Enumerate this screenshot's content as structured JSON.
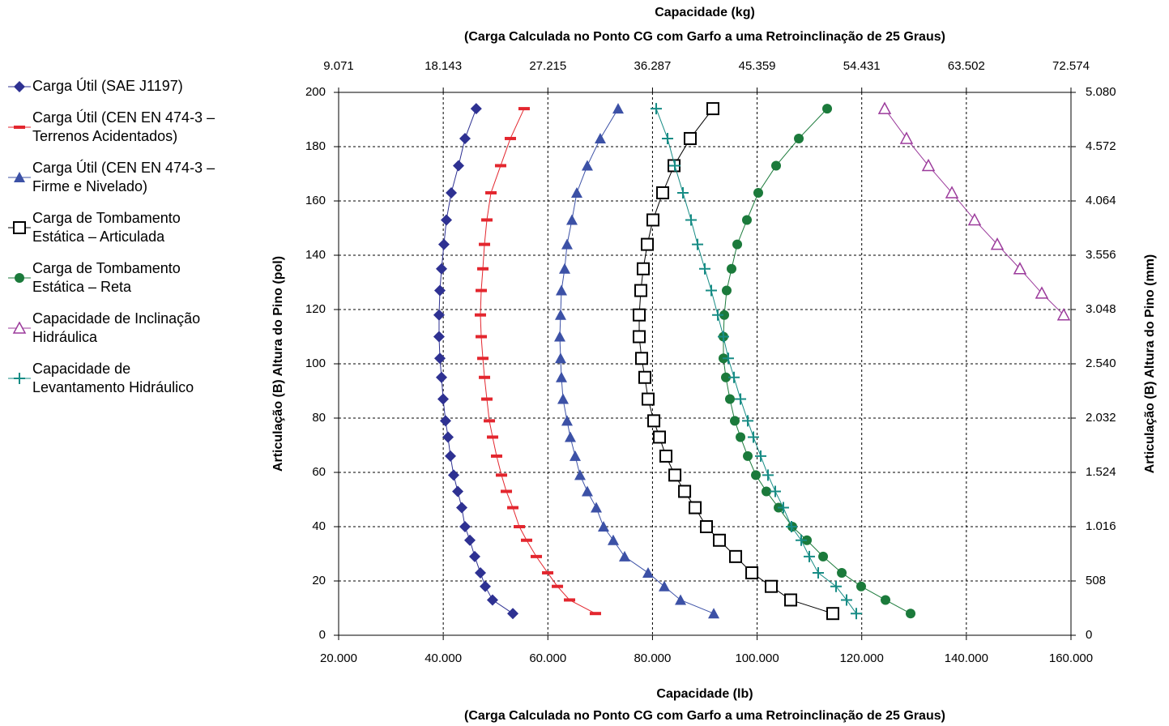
{
  "chart_data": {
    "type": "line",
    "xlabel": "Capacidade (lb)",
    "xlabel_note": "(Carga Calculada no Ponto CG com Garfo a uma Retroinclinação de 25 Graus)",
    "x2label": "Capacidade (kg)",
    "x2label_note": "(Carga Calculada no Ponto CG com Garfo a uma Retroinclinação de 25 Graus)",
    "ylabel": "Articulação (B) Altura do Pino (pol)",
    "y2label": "Articulação (B) Altura do Pino (mm)",
    "xlim": [
      20000,
      160000
    ],
    "xticks": [
      {
        "value": 20000,
        "label": "20.000"
      },
      {
        "value": 40000,
        "label": "40.000"
      },
      {
        "value": 60000,
        "label": "60.000"
      },
      {
        "value": 80000,
        "label": "80.000"
      },
      {
        "value": 100000,
        "label": "100.000"
      },
      {
        "value": 120000,
        "label": "120.000"
      },
      {
        "value": 140000,
        "label": "140.000"
      },
      {
        "value": 160000,
        "label": "160.000"
      }
    ],
    "x2lim": [
      9071,
      72574
    ],
    "x2ticks": [
      {
        "value": 9071,
        "label": "9.071"
      },
      {
        "value": 18143,
        "label": "18.143"
      },
      {
        "value": 27215,
        "label": "27.215"
      },
      {
        "value": 36287,
        "label": "36.287"
      },
      {
        "value": 45359,
        "label": "45.359"
      },
      {
        "value": 54431,
        "label": "54.431"
      },
      {
        "value": 63502,
        "label": "63.502"
      },
      {
        "value": 72574,
        "label": "72.574"
      }
    ],
    "ylim": [
      0,
      200
    ],
    "yticks": [
      0,
      20,
      40,
      60,
      80,
      100,
      120,
      140,
      160,
      180,
      200
    ],
    "y2lim": [
      0,
      5080
    ],
    "y2ticks": [
      0,
      508,
      {
        "value": 1016,
        "label": "1.016"
      },
      {
        "value": 1524,
        "label": "1.524"
      },
      {
        "value": 2032,
        "label": "2.032"
      },
      {
        "value": 2540,
        "label": "2.540"
      },
      {
        "value": 3048,
        "label": "3.048"
      },
      {
        "value": 3556,
        "label": "3.556"
      },
      {
        "value": 4064,
        "label": "4.064"
      },
      {
        "value": 4572,
        "label": "4.572"
      },
      {
        "value": 5080,
        "label": "5.080"
      }
    ],
    "grid": true,
    "legend": "left",
    "series": [
      {
        "name": "Carga Útil (SAE J1197)",
        "color": "#2e3192",
        "marker": "diamond",
        "x": [
          46300,
          44160,
          42920,
          41530,
          40600,
          40130,
          39670,
          39360,
          39200,
          39200,
          39360,
          39670,
          39980,
          40440,
          40910,
          41370,
          41990,
          42770,
          43540,
          44160,
          45090,
          46020,
          47100,
          48030,
          49420,
          53300
        ],
        "values": [
          194,
          183,
          173,
          163,
          153,
          144,
          135,
          127,
          118,
          110,
          102,
          95,
          87,
          79,
          73,
          66,
          59,
          53,
          47,
          40,
          35,
          29,
          23,
          18,
          13,
          8
        ]
      },
      {
        "name": "Carga Útil (CEN EN 474-3 – Terrenos Acidentados)",
        "color": "#e3262e",
        "marker": "dash",
        "x": [
          55460,
          52830,
          50970,
          49120,
          48340,
          47880,
          47570,
          47260,
          47100,
          47260,
          47570,
          47880,
          48340,
          48810,
          49430,
          50200,
          51130,
          52060,
          53300,
          54540,
          55930,
          57790,
          59960,
          61820,
          64140,
          69090
        ],
        "values": [
          194,
          183,
          173,
          163,
          153,
          144,
          135,
          127,
          118,
          110,
          102,
          95,
          87,
          79,
          73,
          66,
          59,
          53,
          47,
          40,
          35,
          29,
          23,
          18,
          13,
          8
        ]
      },
      {
        "name": "Carga Útil (CEN EN 474-3 – Firme e Nivelado)",
        "color": "#3c51a6",
        "marker": "triangle",
        "x": [
          73430,
          70020,
          67540,
          65530,
          64600,
          63670,
          63210,
          62590,
          62430,
          62280,
          62430,
          62590,
          62900,
          63670,
          64290,
          65220,
          66150,
          67540,
          69250,
          70640,
          72500,
          74670,
          79160,
          82260,
          85360,
          91710
        ],
        "values": [
          194,
          183,
          173,
          163,
          153,
          144,
          135,
          127,
          118,
          110,
          102,
          95,
          87,
          79,
          73,
          66,
          59,
          53,
          47,
          40,
          35,
          29,
          23,
          18,
          13,
          8
        ]
      },
      {
        "name": "Carga de Tombamento Estática – Articulada",
        "color": "#000000",
        "marker": "square",
        "x": [
          91550,
          87210,
          84120,
          81950,
          80090,
          79010,
          78230,
          77770,
          77460,
          77460,
          77920,
          78540,
          79160,
          80250,
          81330,
          82570,
          84280,
          86140,
          88150,
          90310,
          92790,
          95890,
          98990,
          102700,
          106420,
          114470
        ],
        "values": [
          194,
          183,
          173,
          163,
          153,
          144,
          135,
          127,
          118,
          110,
          102,
          95,
          87,
          79,
          73,
          66,
          59,
          53,
          47,
          40,
          35,
          29,
          23,
          18,
          13,
          8
        ]
      },
      {
        "name": "Carga de Tombamento Estática – Reta",
        "color": "#1b7a3b",
        "marker": "circle",
        "x": [
          113390,
          107970,
          103630,
          100220,
          98050,
          96200,
          95110,
          94180,
          93720,
          93560,
          93560,
          94030,
          94800,
          95730,
          96820,
          98210,
          99760,
          101770,
          104100,
          106730,
          109520,
          112620,
          116180,
          119890,
          124540,
          129340
        ],
        "values": [
          194,
          183,
          173,
          163,
          153,
          144,
          135,
          127,
          118,
          110,
          102,
          95,
          87,
          79,
          73,
          66,
          59,
          53,
          47,
          40,
          35,
          29,
          23,
          18,
          13,
          8
        ]
      },
      {
        "name": "Capacidade de Inclinação Hidráulica",
        "color": "#9b3a9b",
        "marker": "open-triangle",
        "x": [
          124380,
          128560,
          132750,
          137240,
          141570,
          145910,
          150240,
          154420,
          158610
        ],
        "values": [
          194,
          183,
          173,
          163,
          153,
          144,
          135,
          126,
          118
        ]
      },
      {
        "name": "Capacidade de Levantamento Hidráulico",
        "color": "#178c85",
        "marker": "plus",
        "x": [
          80710,
          82880,
          84270,
          85820,
          87370,
          88610,
          90000,
          91240,
          92480,
          93560,
          94490,
          95580,
          96820,
          98210,
          99290,
          100690,
          102080,
          103470,
          105020,
          106570,
          108430,
          109980,
          111680,
          115090,
          117100,
          118960
        ],
        "values": [
          194,
          183,
          173,
          163,
          153,
          144,
          135,
          127,
          118,
          110,
          102,
          95,
          87,
          79,
          73,
          66,
          59,
          53,
          47,
          40,
          35,
          29,
          23,
          18,
          13,
          8
        ]
      }
    ]
  }
}
